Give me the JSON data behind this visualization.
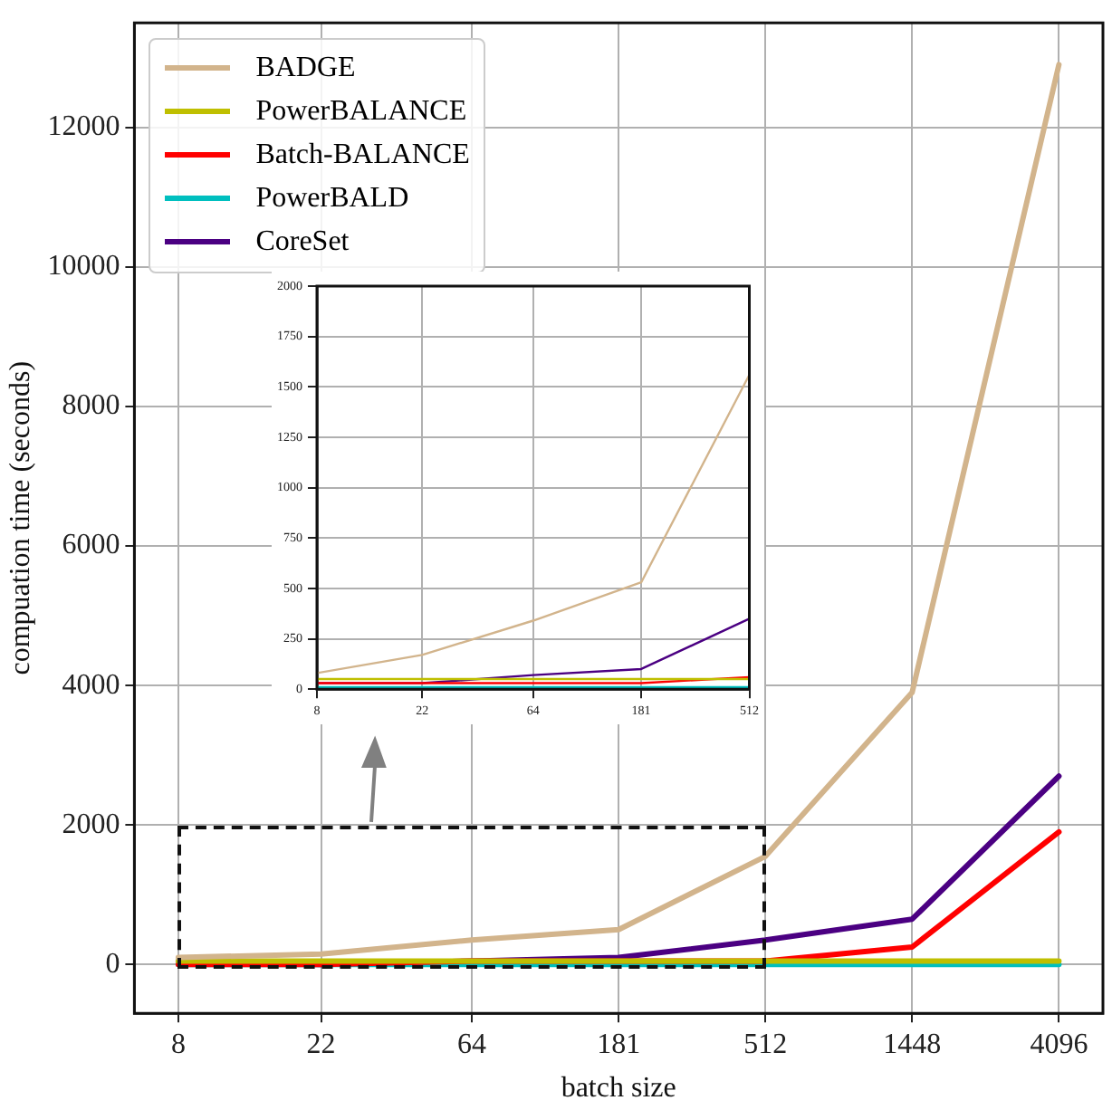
{
  "chart_data": [
    {
      "type": "line",
      "xlabel": "batch size",
      "ylabel": "compuation time (seconds)",
      "log": "x",
      "x": [
        8,
        22,
        64,
        181,
        512,
        1448,
        4096
      ],
      "xlim": [
        5.86,
        5595
      ],
      "xticks": [
        8,
        22,
        64,
        181,
        512,
        1448,
        4096
      ],
      "ylim": [
        -700,
        13500
      ],
      "yticks": [
        0,
        2000,
        4000,
        6000,
        8000,
        10000,
        12000
      ],
      "grid": true,
      "legend": "top left",
      "marker": "none",
      "line_style": "solid",
      "series": [
        {
          "name": "BADGE",
          "color": "#d2b48c",
          "values": [
            100,
            150,
            350,
            500,
            1550,
            3900,
            12900
          ]
        },
        {
          "name": "PowerBALANCE",
          "color": "#bfbf00",
          "values": [
            50,
            50,
            50,
            50,
            50,
            50,
            50
          ]
        },
        {
          "name": "Batch-BALANCE",
          "color": "#ff0000",
          "values": [
            0,
            0,
            50,
            50,
            50,
            250,
            1900
          ]
        },
        {
          "name": "PowerBALD",
          "color": "#00bfbf",
          "values": [
            0,
            0,
            0,
            0,
            0,
            0,
            0
          ]
        },
        {
          "name": "CoreSet",
          "color": "#4b0082",
          "values": [
            50,
            0,
            50,
            100,
            350,
            650,
            2700
          ]
        }
      ]
    },
    {
      "type": "line",
      "log": "x",
      "x": [
        8,
        22,
        64,
        181,
        512
      ],
      "xlim": [
        8,
        512
      ],
      "xticks": [
        8,
        22,
        64,
        181,
        512
      ],
      "ylim": [
        0,
        2000
      ],
      "yticks": [
        0,
        250,
        500,
        750,
        1000,
        1250,
        1500,
        1750,
        2000
      ],
      "grid": true,
      "marker": "none",
      "line_style": "solid",
      "series": [
        {
          "color": "#d2b48c",
          "values": [
            80,
            170,
            340,
            530,
            1560
          ]
        },
        {
          "color": "#bfbf00",
          "values": [
            50,
            50,
            50,
            50,
            50
          ]
        },
        {
          "color": "#ff0000",
          "values": [
            30,
            30,
            30,
            30,
            60
          ]
        },
        {
          "color": "#00bfbf",
          "values": [
            10,
            10,
            10,
            10,
            10
          ]
        },
        {
          "color": "#4b0082",
          "values": [
            30,
            30,
            70,
            100,
            350
          ]
        }
      ]
    }
  ]
}
